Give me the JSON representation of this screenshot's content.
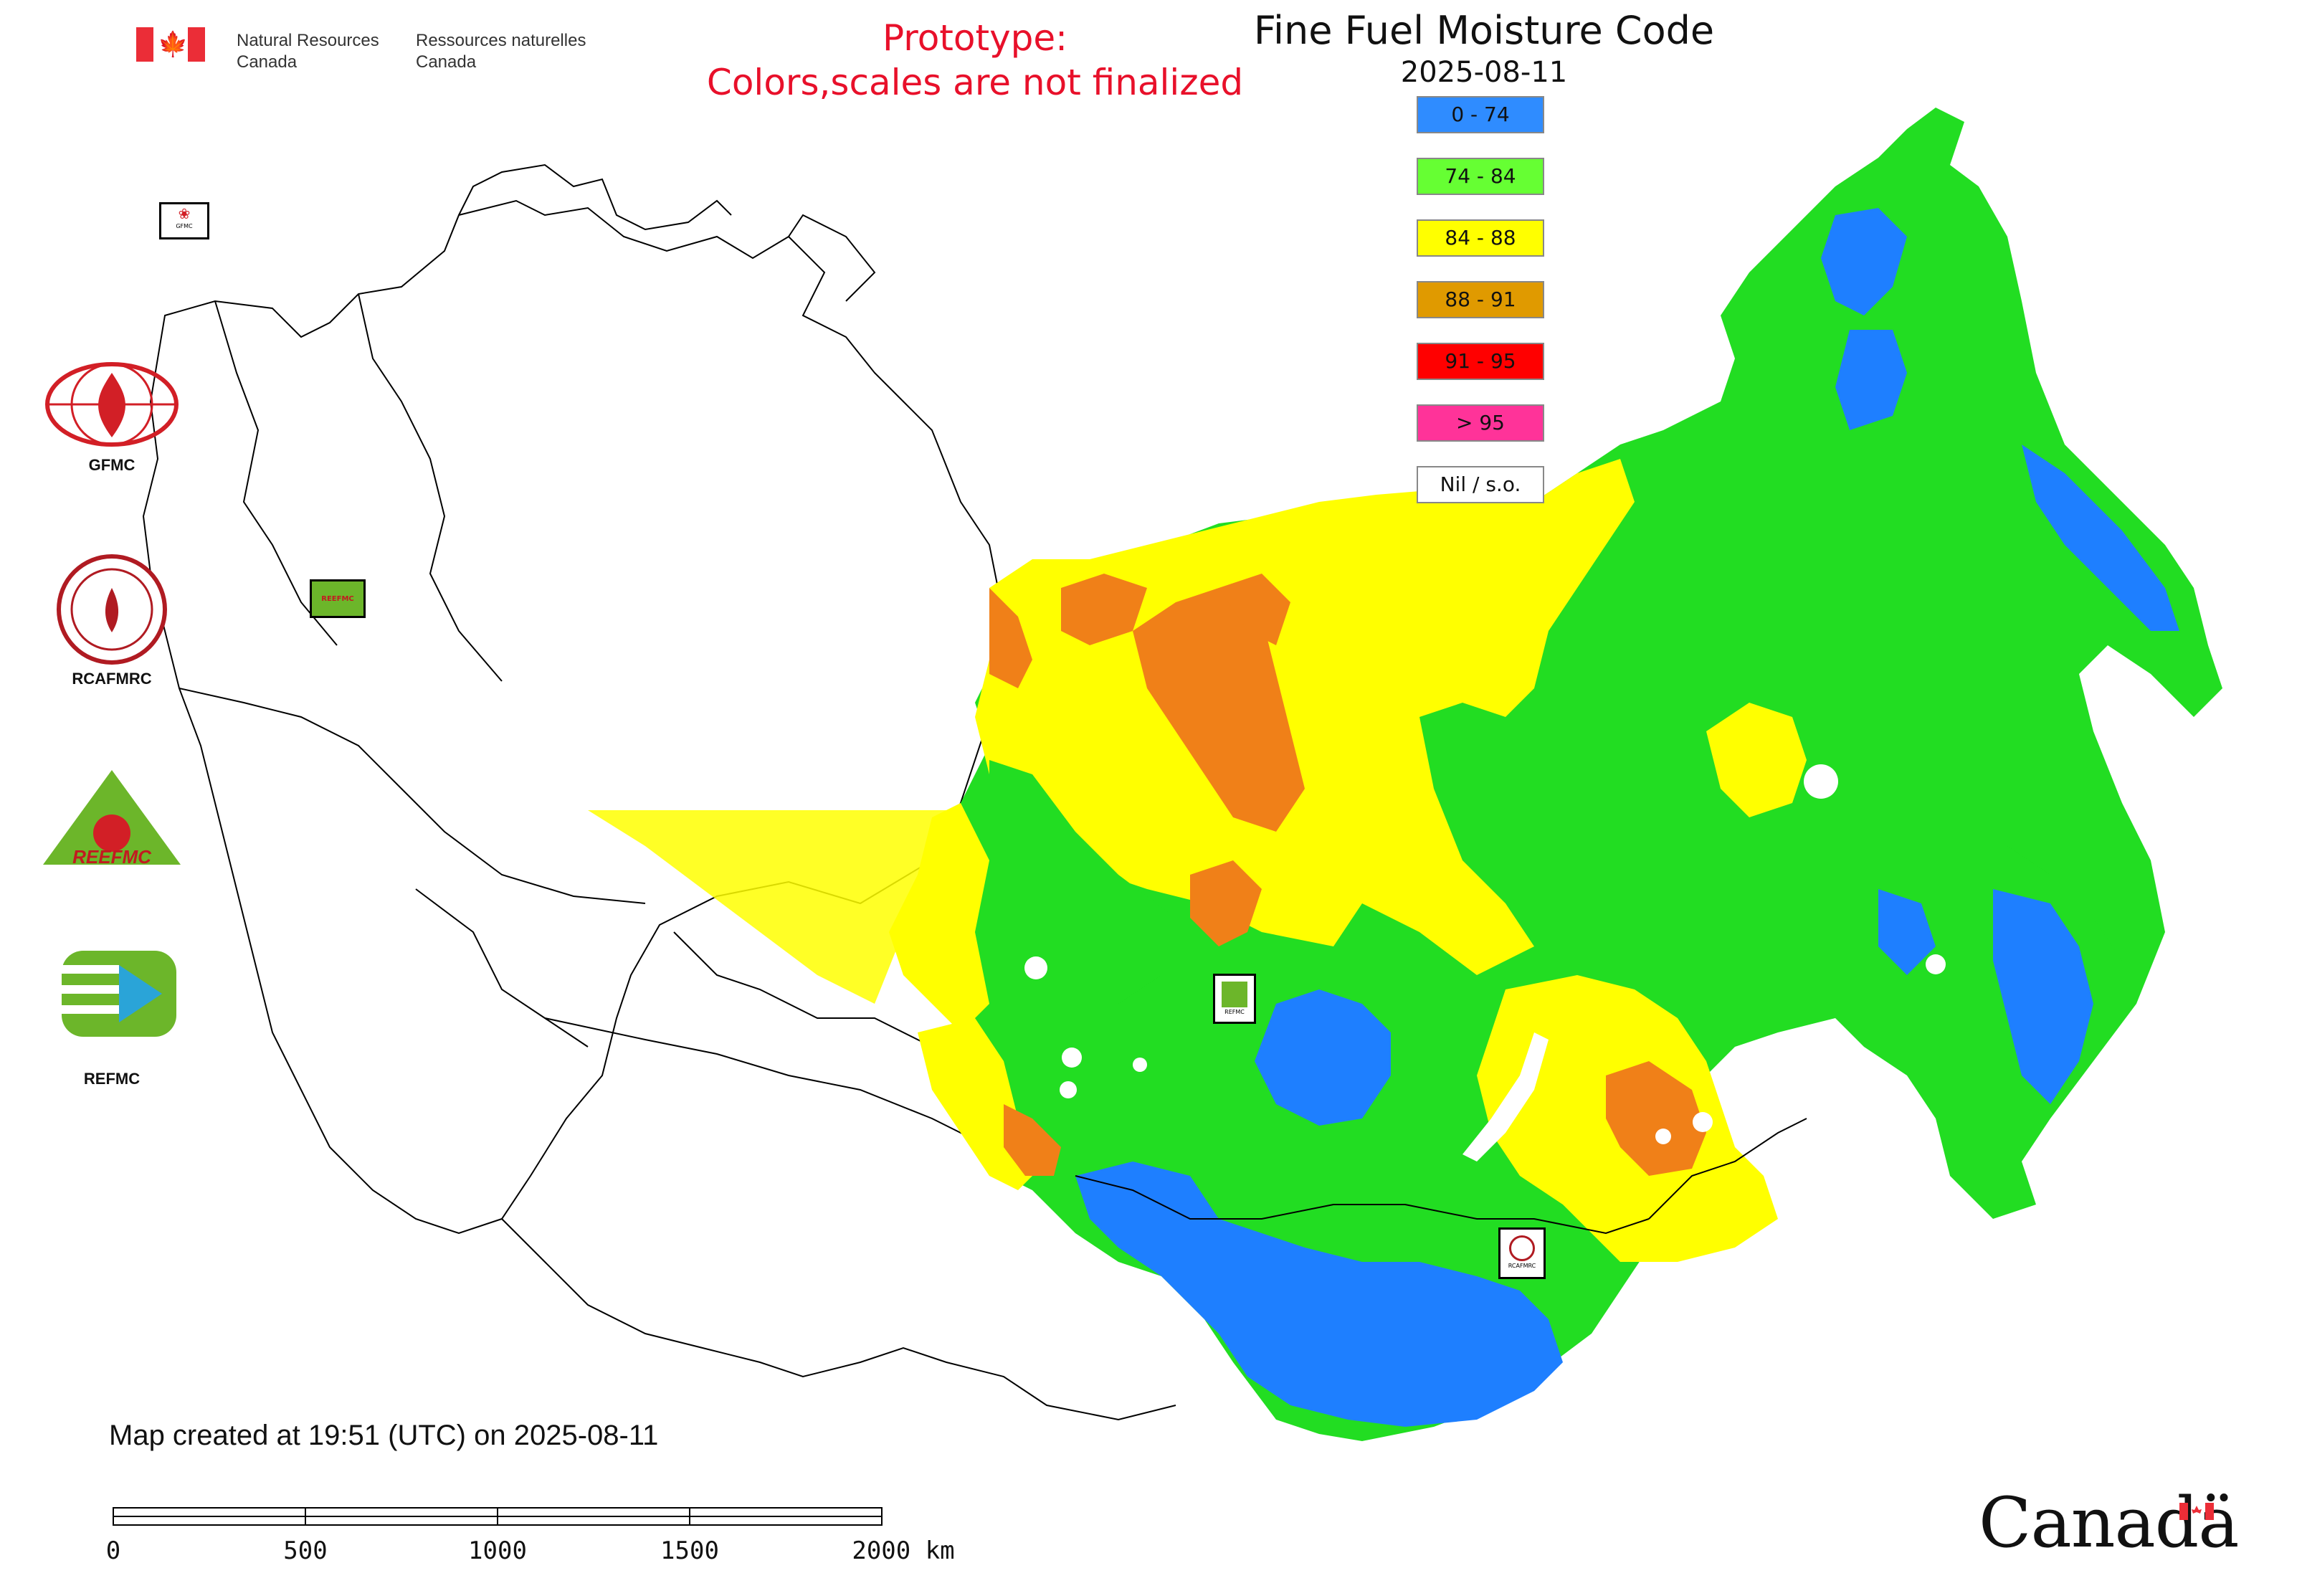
{
  "header": {
    "gov_en": "Natural Resources\nCanada",
    "gov_fr": "Ressources naturelles\nCanada",
    "prototype_note": "Prototype:\nColors,scales are not finalized",
    "title": "Fine Fuel Moisture Code",
    "date": "2025-08-11"
  },
  "legend": {
    "items": [
      {
        "label": "0 - 74",
        "color": "#2f8cff"
      },
      {
        "label": "74 - 84",
        "color": "#66ff33"
      },
      {
        "label": "84 - 88",
        "color": "#ffff00"
      },
      {
        "label": "88 - 91",
        "color": "#e09a00"
      },
      {
        "label": "91 - 95",
        "color": "#ff0000"
      },
      {
        "label": "> 95",
        "color": "#ff3399"
      },
      {
        "label": "Nil / s.o.",
        "color": "#ffffff"
      }
    ]
  },
  "map_colors": {
    "green": "#22dd22",
    "blue": "#1e7fff",
    "yellow": "#ffff00",
    "orange": "#f08018",
    "outline": "#000000"
  },
  "agencies": [
    {
      "name": "GFMC",
      "icon": "gfmc-logo"
    },
    {
      "name": "RCAFMRC",
      "icon": "rcafmrc-logo"
    },
    {
      "name": "REEFMC",
      "icon": "reefmc-logo"
    },
    {
      "name": "REFMC",
      "icon": "refmc-logo"
    }
  ],
  "map_badges": {
    "gfmc": "GFMC",
    "reefmc": "REEFMC",
    "refmc": "REFMC",
    "rcafmrc": "RCAFMRC"
  },
  "footer": {
    "created": "Map created at 19:51 (UTC) on 2025-08-11",
    "scale_labels": [
      "0",
      "500",
      "1000",
      "1500",
      "2000 km"
    ],
    "wordmark": "Canadä"
  }
}
